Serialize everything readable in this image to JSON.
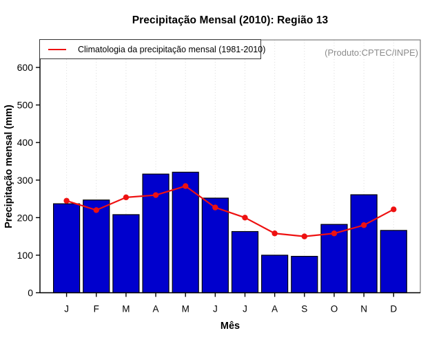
{
  "title": "Precipitação Mensal (2010): Região 13",
  "watermark": "(Produto:CPTEC/INPE)",
  "legend": {
    "label": "Climatologia da precipitação mensal (1981-2010)"
  },
  "colors": {
    "bar_fill": "#0000CD",
    "bar_border": "#000000",
    "line_color": "#EE1111",
    "grid_color": "#DCDCDC",
    "box_color": "#7a7a7a",
    "axis_color": "#000000",
    "watermark_color": "#8c8c8c"
  },
  "chart_data": {
    "type": "bar",
    "title": "Precipitação Mensal (2010): Região 13",
    "xlabel": "Mês",
    "ylabel": "Precipitação mensal (mm)",
    "categories": [
      "J",
      "F",
      "M",
      "A",
      "M",
      "J",
      "J",
      "A",
      "S",
      "O",
      "N",
      "D"
    ],
    "series": [
      {
        "name": "Precipitação mensal 2010",
        "type": "bar",
        "color": "#0000CD",
        "values": [
          237,
          247,
          208,
          316,
          321,
          252,
          163,
          100,
          97,
          182,
          261,
          166
        ]
      },
      {
        "name": "Climatologia da precipitação mensal (1981-2010)",
        "type": "line",
        "color": "#EE1111",
        "values": [
          245,
          220,
          254,
          260,
          284,
          227,
          200,
          158,
          150,
          158,
          180,
          222
        ]
      }
    ],
    "y_ticks": [
      0,
      100,
      200,
      300,
      400,
      500,
      600
    ],
    "ylim": [
      0,
      673
    ],
    "grid": "vertical-dotted",
    "legend_position": "top-left"
  }
}
